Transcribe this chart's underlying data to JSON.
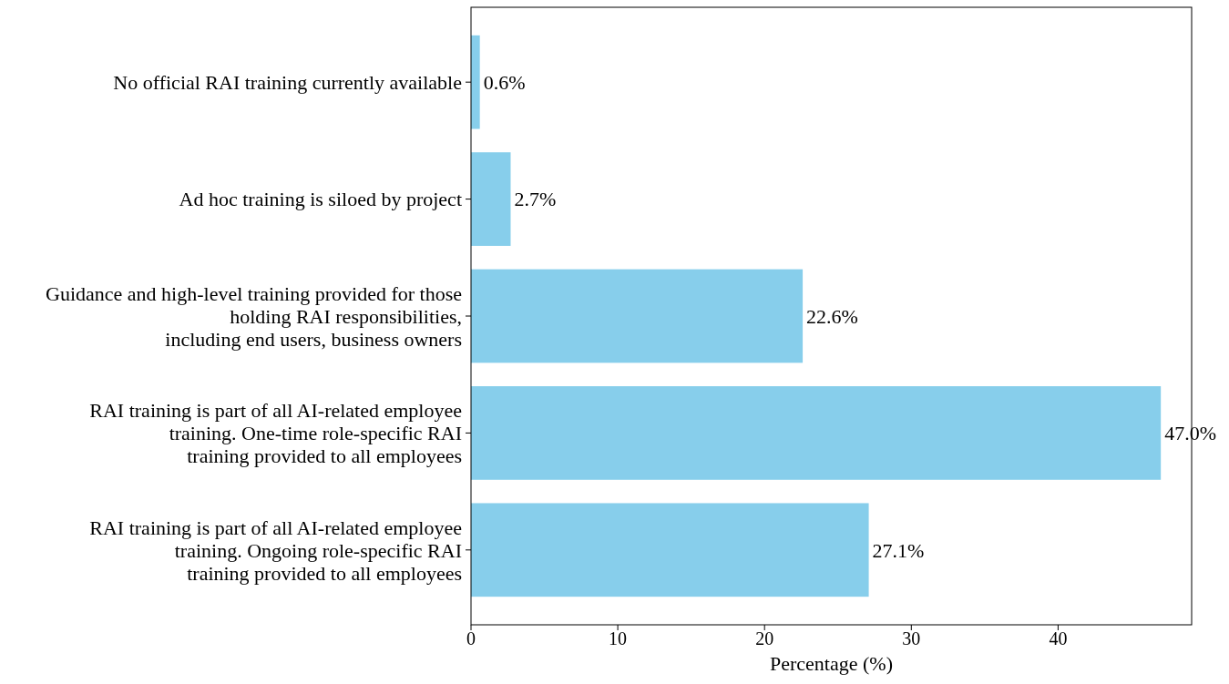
{
  "chart_data": {
    "type": "bar",
    "orientation": "horizontal",
    "xlabel": "Percentage (%)",
    "categories": [
      "No official RAI training currently available",
      "Ad hoc training is siloed by project",
      "Guidance and high-level training provided for those\nholding RAI responsibilities,\nincluding end users, business owners",
      "RAI training is part of all AI-related employee\ntraining. One-time role-specific RAI\ntraining provided to all employees",
      "RAI training is part of all AI-related employee\ntraining. Ongoing role-specific RAI\ntraining provided to all employees"
    ],
    "values": [
      0.6,
      2.7,
      22.6,
      47.0,
      27.1
    ],
    "value_labels": [
      "0.6%",
      "2.7%",
      "22.6%",
      "47.0%",
      "27.1%"
    ],
    "color": "#87ceeb",
    "xlim": [
      0,
      49.1
    ],
    "xticks": [
      0,
      10,
      20,
      30,
      40
    ],
    "grid": false
  }
}
